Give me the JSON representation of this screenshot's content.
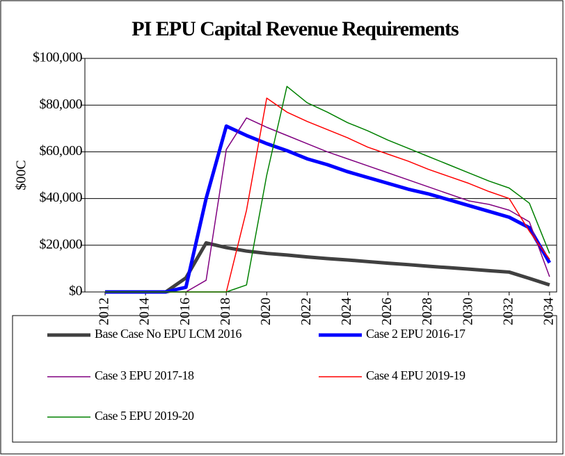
{
  "chart_data": {
    "type": "line",
    "title": "PI EPU Capital Revenue Requirements",
    "y_label": "$00C",
    "x": [
      2012,
      2013,
      2014,
      2015,
      2016,
      2017,
      2018,
      2019,
      2020,
      2021,
      2022,
      2023,
      2024,
      2025,
      2026,
      2027,
      2028,
      2029,
      2030,
      2031,
      2032,
      2033,
      2034
    ],
    "xlim": [
      2011,
      2034.35
    ],
    "xticks": [
      2012,
      2014,
      2016,
      2018,
      2020,
      2022,
      2024,
      2026,
      2028,
      2030,
      2032,
      2034
    ],
    "ylim": [
      0,
      100000
    ],
    "yticks": [
      {
        "value": 0,
        "label": "$0"
      },
      {
        "value": 20000,
        "label": "$20,000"
      },
      {
        "value": 40000,
        "label": "$40,000"
      },
      {
        "value": 60000,
        "label": "$60,000"
      },
      {
        "value": 80000,
        "label": "$80,000"
      },
      {
        "value": 100000,
        "label": "$100,000"
      }
    ],
    "grid": true,
    "series": [
      {
        "name": "Base Case No EPU LCM 2016",
        "color": "#404040",
        "width": 5,
        "values": [
          0,
          0,
          0,
          0,
          6000,
          21000,
          19000,
          17500,
          16500,
          15800,
          15000,
          14300,
          13700,
          13000,
          12300,
          11700,
          11000,
          10400,
          9800,
          9100,
          8500,
          5800,
          3000
        ]
      },
      {
        "name": "Case 2 EPU 2016-17",
        "color": "#0000ff",
        "width": 5,
        "values": [
          0,
          0,
          0,
          0,
          2000,
          40000,
          71000,
          67000,
          63500,
          60500,
          57000,
          54500,
          51500,
          49000,
          46500,
          44000,
          42000,
          39500,
          37000,
          34500,
          32000,
          27500,
          12500
        ]
      },
      {
        "name": "Case 3 EPU 2017-18",
        "color": "#800080",
        "width": 1.5,
        "values": [
          0,
          0,
          0,
          0,
          0,
          5000,
          61000,
          74500,
          70500,
          67000,
          63500,
          60000,
          57000,
          54000,
          51000,
          48000,
          45000,
          42000,
          39000,
          37500,
          35000,
          30000,
          6500
        ]
      },
      {
        "name": "Case 4 EPU 2019-19",
        "color": "#ff0000",
        "width": 1.5,
        "values": [
          0,
          0,
          0,
          0,
          0,
          0,
          0,
          35000,
          83000,
          77000,
          73000,
          69500,
          66000,
          62000,
          59000,
          56000,
          52500,
          49500,
          46500,
          43000,
          40000,
          26000,
          14000
        ]
      },
      {
        "name": "Case 5 EPU 2019-20",
        "color": "#008000",
        "width": 1.5,
        "values": [
          0,
          0,
          0,
          0,
          0,
          0,
          0,
          3000,
          50000,
          88000,
          81000,
          77000,
          72500,
          69000,
          65000,
          61500,
          58000,
          54500,
          51000,
          47500,
          44500,
          38000,
          16500
        ]
      }
    ]
  }
}
